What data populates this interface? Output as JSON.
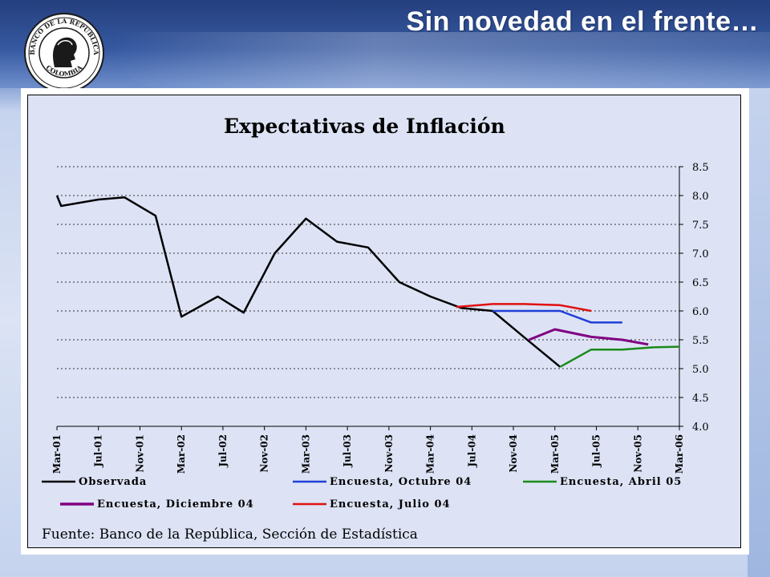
{
  "slide": {
    "title": "Sin novedad en el frente…",
    "seal_text_top": "BANCO DE LA REPUBLICA",
    "seal_text_bottom": "COLOMBIA"
  },
  "chart_data": {
    "type": "line",
    "title": "Expectativas de Inflación",
    "ylim": [
      4.0,
      8.5
    ],
    "y_ticks": [
      "8.5",
      "8.0",
      "7.5",
      "7.0",
      "6.5",
      "6.0",
      "5.5",
      "5.0",
      "4.5",
      "4.0"
    ],
    "y_axis_side": "right",
    "grid": "horizontal dotted",
    "x_tick_labels": [
      "Mar-01",
      "Jul-01",
      "Nov-01",
      "Mar-02",
      "Jul-02",
      "Nov-02",
      "Mar-03",
      "Jul-03",
      "Nov-03",
      "Mar-04",
      "Jul-04",
      "Nov-04",
      "Mar-05",
      "Jul-05",
      "Nov-05",
      "Mar-06"
    ],
    "x_unit": "months since Mar-01 (tick every 4 months)",
    "xlim": [
      0,
      60
    ],
    "series": [
      {
        "name": "Observada",
        "color": "#000000",
        "points": [
          [
            0,
            8.0
          ],
          [
            0.4,
            7.82
          ],
          [
            4,
            7.93
          ],
          [
            6.5,
            7.97
          ],
          [
            9.5,
            7.65
          ],
          [
            12,
            5.9
          ],
          [
            15.5,
            6.25
          ],
          [
            18,
            5.97
          ],
          [
            21,
            7.0
          ],
          [
            24,
            7.6
          ],
          [
            27,
            7.2
          ],
          [
            30,
            7.1
          ],
          [
            33,
            6.5
          ],
          [
            36,
            6.25
          ],
          [
            39,
            6.05
          ],
          [
            42,
            6.0
          ],
          [
            45,
            5.55
          ],
          [
            48.5,
            5.03
          ]
        ]
      },
      {
        "name": "Encuesta, Octubre 04",
        "color": "#1f3fd6",
        "points": [
          [
            42,
            6.0
          ],
          [
            45,
            6.0
          ],
          [
            48.5,
            6.0
          ],
          [
            51.5,
            5.8
          ],
          [
            54.5,
            5.8
          ]
        ]
      },
      {
        "name": "Encuesta, Abril 05",
        "color": "#1a8a1a",
        "points": [
          [
            48.5,
            5.03
          ],
          [
            51.5,
            5.33
          ],
          [
            54.5,
            5.33
          ],
          [
            57.5,
            5.37
          ],
          [
            60,
            5.38
          ]
        ]
      },
      {
        "name": "Encuesta, Diciembre 04",
        "color": "#800080",
        "points": [
          [
            45.5,
            5.5
          ],
          [
            48,
            5.68
          ],
          [
            51.5,
            5.55
          ],
          [
            54.5,
            5.5
          ],
          [
            57,
            5.42
          ]
        ]
      },
      {
        "name": "Encuesta, Julio 04",
        "color": "#e01010",
        "points": [
          [
            38.5,
            6.07
          ],
          [
            42,
            6.12
          ],
          [
            45,
            6.12
          ],
          [
            48.5,
            6.1
          ],
          [
            51.5,
            6.0
          ]
        ]
      }
    ],
    "legend_placement": "bottom",
    "source_note": "Fuente: Banco de la República, Sección de Estadística"
  }
}
